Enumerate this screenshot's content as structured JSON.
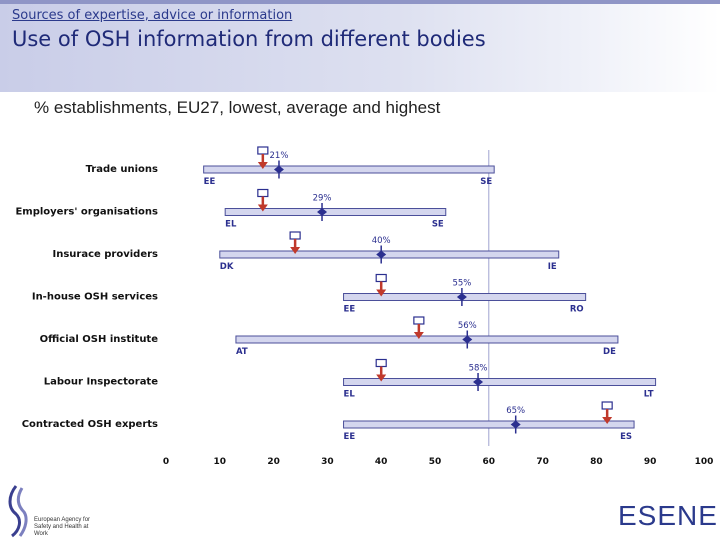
{
  "header": {
    "subtitle": "Sources of expertise, advice or information",
    "title": "Use of OSH information from different bodies"
  },
  "chart_caption": "% establishments, EU27, lowest, average and highest",
  "chart_data": {
    "type": "range",
    "title": "% establishments, EU27, lowest, average and highest",
    "xlim": [
      0,
      100
    ],
    "xticks": [
      0,
      10,
      20,
      30,
      40,
      50,
      60,
      70,
      80,
      90,
      100
    ],
    "reference_line": 60,
    "colors": {
      "bar_fill": "#d4d6ee",
      "bar_stroke": "#4b4f9a",
      "average_marker": "#2b2f8f",
      "arrow": "#c0392b",
      "grid": "#9fa3cf"
    },
    "rows": [
      {
        "label": "Trade unions",
        "low": 7,
        "avg": 21,
        "high": 61,
        "low_country": "EE",
        "high_country": "SE",
        "avg_label": "21%",
        "marker": 18
      },
      {
        "label": "Employers' organisations",
        "low": 11,
        "avg": 29,
        "high": 52,
        "low_country": "EL",
        "high_country": "SE",
        "avg_label": "29%",
        "marker": 18
      },
      {
        "label": "Insurace providers",
        "low": 10,
        "avg": 40,
        "high": 73,
        "low_country": "DK",
        "high_country": "IE",
        "avg_label": "40%",
        "marker": 24
      },
      {
        "label": "In-house OSH services",
        "low": 33,
        "avg": 55,
        "high": 78,
        "low_country": "EE",
        "high_country": "RO",
        "avg_label": "55%",
        "marker": 40
      },
      {
        "label": "Official OSH institute",
        "low": 13,
        "avg": 56,
        "high": 84,
        "low_country": "AT",
        "high_country": "DE",
        "avg_label": "56%",
        "marker": 47
      },
      {
        "label": "Labour Inspectorate",
        "low": 33,
        "avg": 58,
        "high": 91,
        "low_country": "EL",
        "high_country": "LT",
        "avg_label": "58%",
        "marker": 40
      },
      {
        "label": "Contracted OSH experts",
        "low": 33,
        "avg": 65,
        "high": 87,
        "low_country": "EE",
        "high_country": "ES",
        "avg_label": "65%",
        "marker": 82
      }
    ]
  },
  "logos": {
    "agency": "European Agency for Safety and Health at Work",
    "esener": "ESENER"
  }
}
